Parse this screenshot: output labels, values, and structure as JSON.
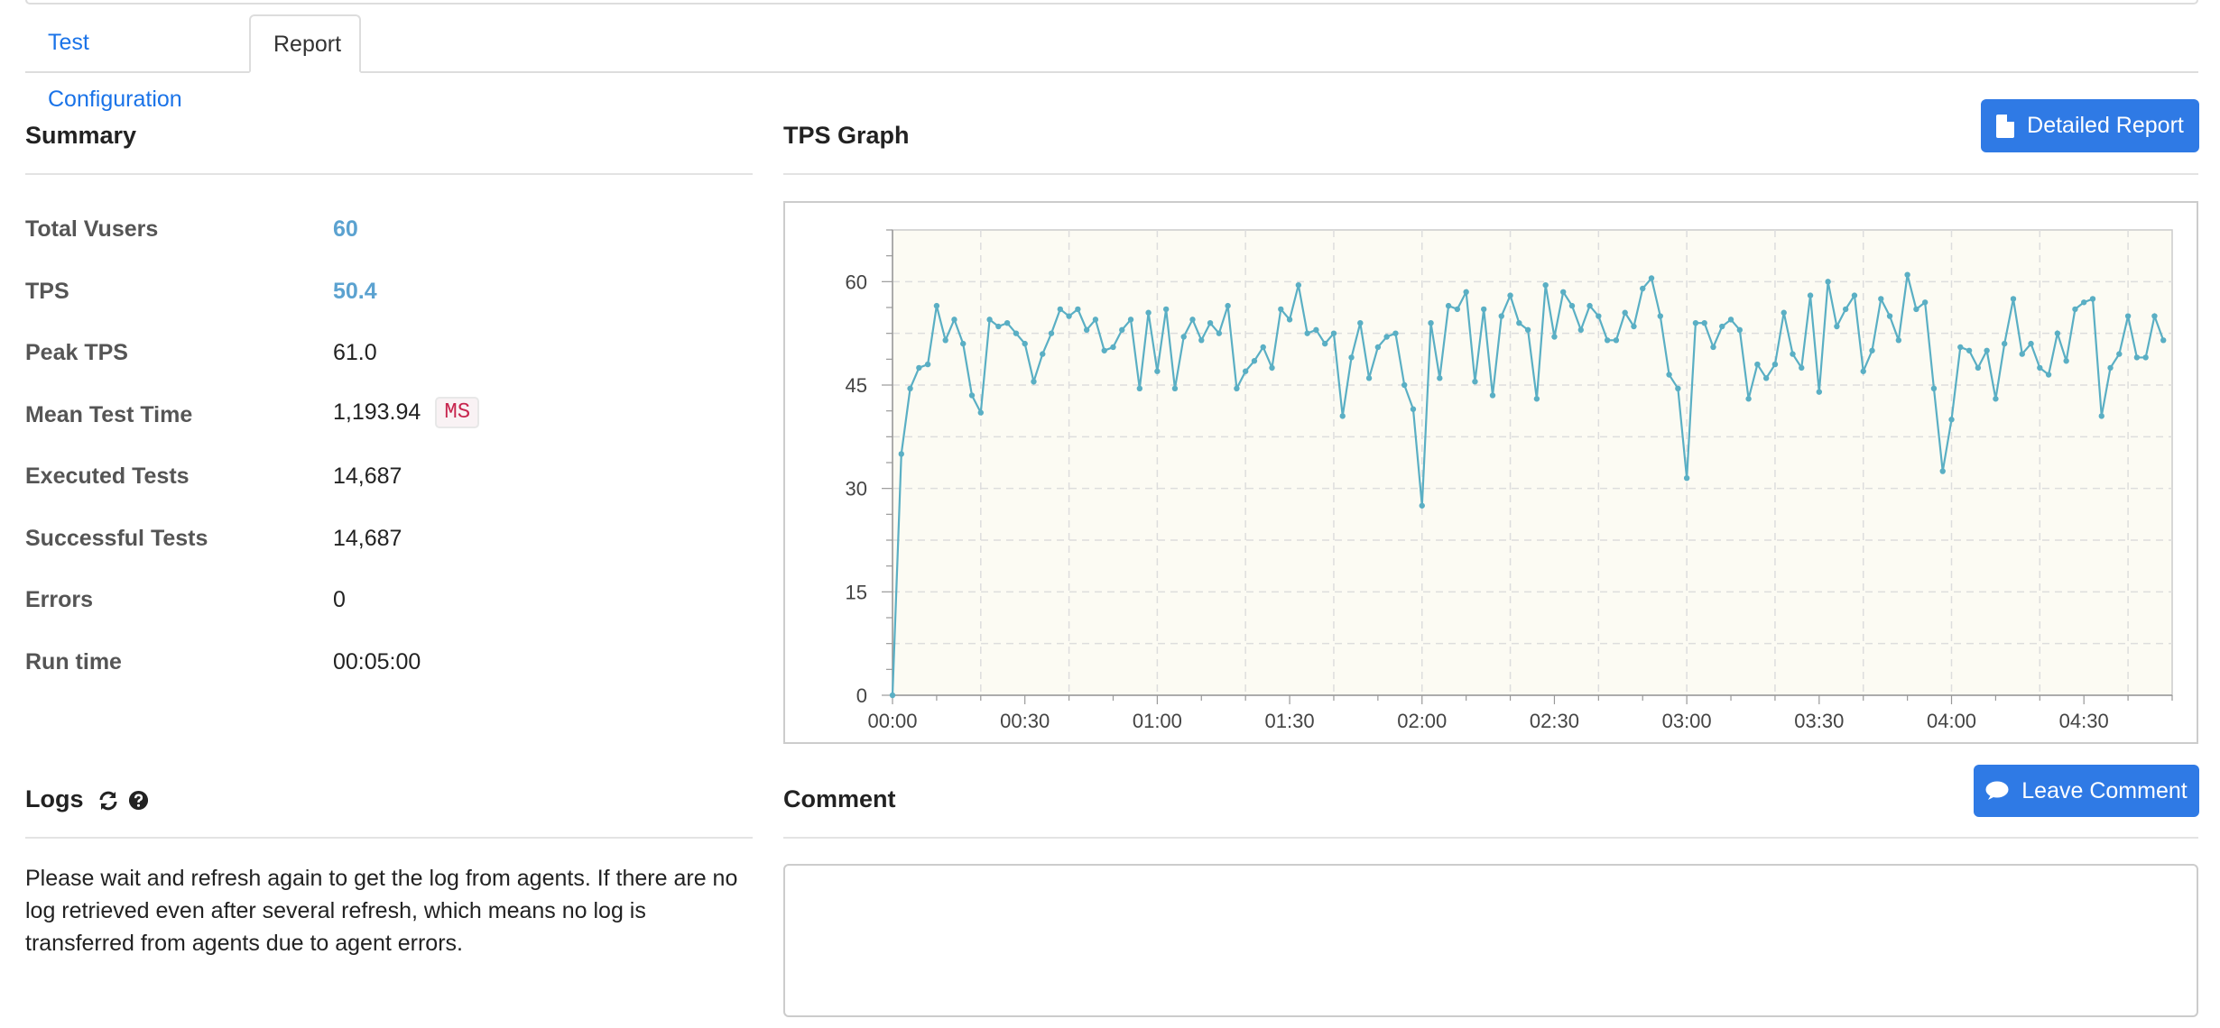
{
  "tabs": [
    {
      "label": "Test Configuration"
    },
    {
      "label": "Report"
    }
  ],
  "summary": {
    "title": "Summary",
    "rows": [
      {
        "label": "Total Vusers",
        "value": "60"
      },
      {
        "label": "TPS",
        "value": "50.4"
      },
      {
        "label": "Peak TPS",
        "value": "61.0"
      },
      {
        "label": "Mean Test Time",
        "value": "1,193.94",
        "unit": "MS"
      },
      {
        "label": "Executed Tests",
        "value": "14,687"
      },
      {
        "label": "Successful Tests",
        "value": "14,687"
      },
      {
        "label": "Errors",
        "value": "0"
      },
      {
        "label": "Run time",
        "value": "00:05:00"
      }
    ],
    "accent_color": "#5ba2d0"
  },
  "tps": {
    "title": "TPS Graph",
    "detailed_report_label": "Detailed Report"
  },
  "logs": {
    "title": "Logs",
    "refresh_icon": "refresh-icon",
    "help_icon": "question-circle-icon",
    "message": "Please wait and refresh again to get the log from agents. If there are no log retrieved even after several refresh, which means no log is transferred from agents due to agent errors."
  },
  "comment": {
    "title": "Comment",
    "leave_comment_label": "Leave Comment",
    "value": ""
  },
  "colors": {
    "button": "#2f7ae5",
    "link": "#1a73e8",
    "line": "#5aafc4",
    "plot_bg": "#fcfbf3"
  },
  "chart_data": {
    "type": "line",
    "title": "",
    "xlabel": "",
    "ylabel": "",
    "x_ticks": [
      "00:00",
      "00:30",
      "01:00",
      "01:30",
      "02:00",
      "02:30",
      "03:00",
      "03:30",
      "04:00",
      "04:30"
    ],
    "y_ticks": [
      "0",
      "15",
      "30",
      "45",
      "60"
    ],
    "ylim": [
      0,
      67.5
    ],
    "xlim_seconds": [
      0,
      290
    ],
    "grid": true,
    "series": [
      {
        "interval_seconds": 2,
        "values": [
          0,
          35,
          44.5,
          47.5,
          48,
          56.5,
          51.5,
          54.5,
          51,
          43.5,
          41,
          54.5,
          53.5,
          54,
          52.5,
          51,
          45.5,
          49.5,
          52.5,
          56,
          55,
          56,
          53,
          54.5,
          50,
          50.5,
          53,
          54.5,
          44.5,
          55.5,
          47,
          56,
          44.5,
          52,
          54.5,
          51.5,
          54,
          52.5,
          56.5,
          44.5,
          47,
          48.5,
          50.5,
          47.5,
          56,
          54.5,
          59.5,
          52.5,
          53,
          51,
          52.5,
          40.5,
          49,
          54,
          46,
          50.5,
          52,
          52.5,
          45,
          41.5,
          27.5,
          54,
          46,
          56.5,
          56,
          58.5,
          45.5,
          56,
          43.5,
          55,
          58,
          54,
          53,
          43,
          59.5,
          52,
          58.5,
          56.5,
          53,
          56.5,
          55,
          51.5,
          51.5,
          55.5,
          53.5,
          59,
          60.5,
          55,
          46.5,
          44.5,
          31.5,
          54,
          54,
          50.5,
          53.5,
          54.5,
          53,
          43,
          48,
          46,
          48,
          55.5,
          49.5,
          47.5,
          58,
          44,
          60,
          53.5,
          56,
          58,
          47,
          50,
          57.5,
          55,
          51.5,
          61,
          56,
          57,
          44.5,
          32.5,
          40,
          50.5,
          50,
          47.5,
          50,
          43,
          51,
          57.5,
          49.5,
          51,
          47.5,
          46.5,
          52.5,
          48.5,
          56,
          57,
          57.5,
          40.5,
          47.5,
          49.5,
          55,
          49,
          49,
          55,
          51.5
        ]
      }
    ]
  }
}
